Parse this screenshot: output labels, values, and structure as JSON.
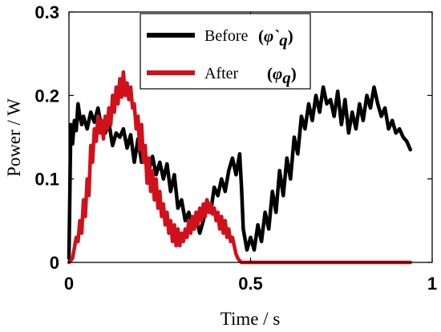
{
  "chart_data": {
    "type": "line",
    "xlabel": "Time / s",
    "ylabel": "Power / W",
    "xlim": [
      0,
      1
    ],
    "ylim": [
      0,
      0.3
    ],
    "xticks": [
      {
        "value": 0,
        "label": "0"
      },
      {
        "value": 0.5,
        "label": "0.5"
      },
      {
        "value": 1,
        "label": "1"
      }
    ],
    "yticks": [
      {
        "value": 0,
        "label": "0"
      },
      {
        "value": 0.1,
        "label": "0.1"
      },
      {
        "value": 0.2,
        "label": "0.2"
      },
      {
        "value": 0.3,
        "label": "0.3"
      }
    ],
    "grid": false,
    "legend_position": "top-center",
    "series": [
      {
        "name": "Before",
        "symbol": "φ`",
        "subscript": "q",
        "color": "#000000",
        "x": [
          0,
          0.005,
          0.01,
          0.015,
          0.02,
          0.025,
          0.03,
          0.035,
          0.04,
          0.05,
          0.06,
          0.07,
          0.08,
          0.09,
          0.1,
          0.11,
          0.12,
          0.13,
          0.14,
          0.15,
          0.16,
          0.17,
          0.18,
          0.19,
          0.2,
          0.21,
          0.22,
          0.23,
          0.24,
          0.25,
          0.26,
          0.27,
          0.28,
          0.29,
          0.3,
          0.31,
          0.32,
          0.33,
          0.34,
          0.35,
          0.36,
          0.37,
          0.38,
          0.39,
          0.4,
          0.41,
          0.42,
          0.43,
          0.44,
          0.45,
          0.46,
          0.47,
          0.475,
          0.48,
          0.49,
          0.5,
          0.51,
          0.52,
          0.53,
          0.54,
          0.55,
          0.56,
          0.57,
          0.58,
          0.59,
          0.6,
          0.61,
          0.62,
          0.63,
          0.64,
          0.65,
          0.66,
          0.67,
          0.68,
          0.69,
          0.7,
          0.71,
          0.72,
          0.73,
          0.74,
          0.75,
          0.76,
          0.77,
          0.78,
          0.79,
          0.8,
          0.81,
          0.82,
          0.83,
          0.84,
          0.85,
          0.86,
          0.87,
          0.88,
          0.89,
          0.9,
          0.91,
          0.92,
          0.93,
          0.94
        ],
        "y": [
          0.005,
          0.165,
          0.142,
          0.17,
          0.158,
          0.19,
          0.175,
          0.165,
          0.175,
          0.16,
          0.18,
          0.168,
          0.185,
          0.16,
          0.155,
          0.167,
          0.14,
          0.155,
          0.15,
          0.16,
          0.137,
          0.153,
          0.12,
          0.148,
          0.12,
          0.13,
          0.11,
          0.127,
          0.105,
          0.12,
          0.1,
          0.118,
          0.085,
          0.105,
          0.065,
          0.075,
          0.05,
          0.06,
          0.04,
          0.055,
          0.035,
          0.05,
          0.075,
          0.06,
          0.09,
          0.08,
          0.1,
          0.085,
          0.11,
          0.125,
          0.105,
          0.13,
          0.09,
          0.04,
          0.015,
          0.03,
          0.015,
          0.045,
          0.025,
          0.06,
          0.04,
          0.085,
          0.06,
          0.11,
          0.08,
          0.125,
          0.1,
          0.15,
          0.13,
          0.175,
          0.16,
          0.19,
          0.17,
          0.2,
          0.18,
          0.21,
          0.19,
          0.195,
          0.175,
          0.205,
          0.165,
          0.195,
          0.155,
          0.18,
          0.16,
          0.19,
          0.17,
          0.2,
          0.185,
          0.21,
          0.19,
          0.175,
          0.185,
          0.16,
          0.17,
          0.155,
          0.16,
          0.15,
          0.145,
          0.135
        ]
      },
      {
        "name": "After",
        "symbol": "φ",
        "subscript": "q",
        "color": "#d0111b",
        "x": [
          0,
          0.01,
          0.02,
          0.025,
          0.03,
          0.035,
          0.04,
          0.045,
          0.05,
          0.055,
          0.06,
          0.065,
          0.07,
          0.075,
          0.08,
          0.085,
          0.09,
          0.095,
          0.1,
          0.105,
          0.11,
          0.115,
          0.12,
          0.125,
          0.13,
          0.135,
          0.14,
          0.145,
          0.15,
          0.155,
          0.16,
          0.165,
          0.17,
          0.175,
          0.18,
          0.185,
          0.19,
          0.195,
          0.2,
          0.205,
          0.21,
          0.215,
          0.22,
          0.225,
          0.23,
          0.235,
          0.24,
          0.245,
          0.25,
          0.255,
          0.26,
          0.265,
          0.27,
          0.275,
          0.28,
          0.285,
          0.29,
          0.295,
          0.3,
          0.305,
          0.31,
          0.315,
          0.32,
          0.325,
          0.33,
          0.335,
          0.34,
          0.345,
          0.35,
          0.355,
          0.36,
          0.365,
          0.37,
          0.375,
          0.38,
          0.385,
          0.39,
          0.395,
          0.4,
          0.405,
          0.41,
          0.415,
          0.42,
          0.425,
          0.43,
          0.435,
          0.44,
          0.445,
          0.45,
          0.455,
          0.46,
          0.465,
          0.47,
          0.475,
          0.48,
          0.5,
          0.6,
          0.7,
          0.8,
          0.9,
          0.94
        ],
        "y": [
          0,
          0.005,
          0.03,
          0.025,
          0.05,
          0.035,
          0.075,
          0.055,
          0.1,
          0.08,
          0.14,
          0.12,
          0.16,
          0.145,
          0.175,
          0.155,
          0.17,
          0.148,
          0.175,
          0.16,
          0.185,
          0.165,
          0.2,
          0.18,
          0.21,
          0.19,
          0.22,
          0.198,
          0.228,
          0.2,
          0.215,
          0.195,
          0.21,
          0.185,
          0.19,
          0.16,
          0.175,
          0.135,
          0.165,
          0.12,
          0.14,
          0.095,
          0.125,
          0.085,
          0.11,
          0.075,
          0.1,
          0.065,
          0.085,
          0.055,
          0.07,
          0.045,
          0.06,
          0.035,
          0.05,
          0.025,
          0.045,
          0.02,
          0.04,
          0.02,
          0.035,
          0.025,
          0.04,
          0.03,
          0.05,
          0.035,
          0.055,
          0.04,
          0.06,
          0.045,
          0.065,
          0.05,
          0.07,
          0.055,
          0.075,
          0.06,
          0.07,
          0.058,
          0.065,
          0.05,
          0.06,
          0.04,
          0.055,
          0.035,
          0.05,
          0.03,
          0.04,
          0.025,
          0.03,
          0.02,
          0.01,
          0.005,
          0.002,
          0,
          0,
          0,
          0,
          0,
          0,
          0,
          0
        ]
      }
    ]
  }
}
